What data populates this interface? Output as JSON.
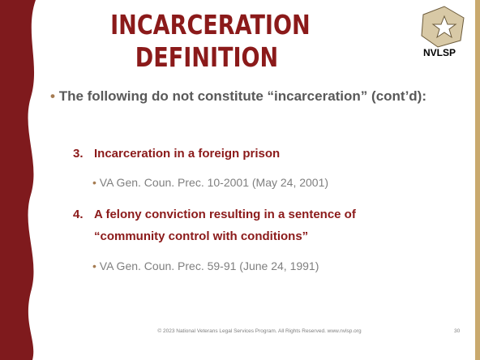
{
  "title": {
    "lines": [
      "INCARCERATION",
      "DEFINITION"
    ]
  },
  "logo": {
    "text": "NVLSP"
  },
  "intro": "The following do not constitute “incarceration” (cont’d):",
  "items": [
    {
      "number": "3.",
      "text": "Incarceration in a foreign prison",
      "sub": "VA Gen. Coun. Prec. 10-2001 (May 24, 2001)"
    },
    {
      "number": "4.",
      "text": "A felony conviction resulting in a sentence of “community control with conditions”",
      "sub": "VA Gen. Coun. Prec. 59-91 (June 24, 1991)"
    }
  ],
  "footer": {
    "text": "© 2023 National Veterans Legal Services Program. All Rights Reserved. www.nvlsp.org",
    "page": "30"
  }
}
